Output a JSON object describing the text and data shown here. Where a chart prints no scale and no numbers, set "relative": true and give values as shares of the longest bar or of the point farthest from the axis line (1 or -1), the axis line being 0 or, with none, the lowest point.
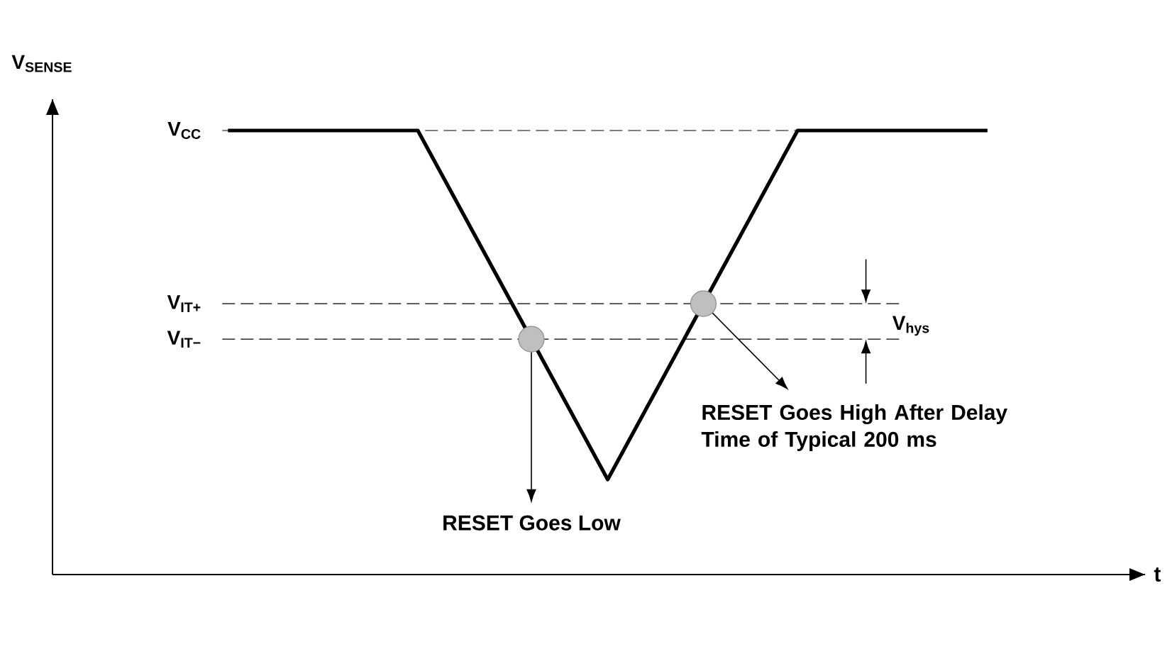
{
  "chart_data": {
    "type": "line",
    "relative": true,
    "categories": [
      null,
      null,
      null,
      null,
      null
    ],
    "values": [
      1,
      1,
      0.214,
      1,
      1
    ],
    "color": "#000000",
    "line_style": "solid",
    "ylabel": "V$_{SENSE}$",
    "xlabel": "t",
    "ref_lines": [
      {
        "axis": "y",
        "value": 1,
        "label": "V$_{CC}$",
        "line_style": "dashed",
        "color": "#000000"
      },
      {
        "axis": "y",
        "value": 0.61,
        "label": "V$_{IT+}$",
        "line_style": "dashed",
        "color": "#000000"
      },
      {
        "axis": "y",
        "value": 0.53,
        "label": "V$_{IT−}$",
        "line_style": "dashed",
        "color": "#000000"
      }
    ],
    "annotations": [
      "RESET Goes Low",
      "RESET Goes High After Delay Time of Typical 200 ms",
      "V$_{hys}$"
    ]
  }
}
